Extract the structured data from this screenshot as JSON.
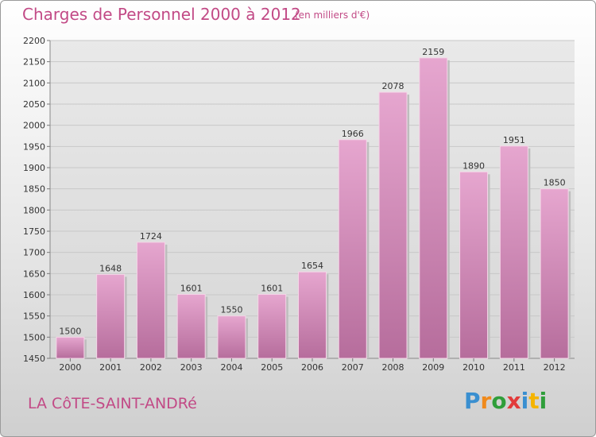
{
  "header": {
    "title": "Charges de Personnel 2000 à 2012",
    "subtitle": "(en milliers d'€)"
  },
  "footer": {
    "town": "LA CôTE-SAINT-ANDRé",
    "logo_letters": [
      "P",
      "r",
      "o",
      "x",
      "i",
      "t",
      "i"
    ],
    "logo_colors": [
      "#3a8fd0",
      "#f08a1c",
      "#2f9e3a",
      "#e23b3b",
      "#3a8fd0",
      "#f5b400",
      "#2f9e3a"
    ]
  },
  "chart_data": {
    "type": "bar",
    "categories": [
      "2000",
      "2001",
      "2002",
      "2003",
      "2004",
      "2005",
      "2006",
      "2007",
      "2008",
      "2009",
      "2010",
      "2011",
      "2012"
    ],
    "values": [
      1500,
      1648,
      1724,
      1601,
      1550,
      1601,
      1654,
      1966,
      2078,
      2159,
      1890,
      1951,
      1850
    ],
    "title": "Charges de Personnel 2000 à 2012",
    "subtitle": "(en milliers d'€)",
    "xlabel": "",
    "ylabel": "",
    "ylim": [
      1450,
      2200
    ],
    "yticks": [
      1450,
      1500,
      1550,
      1600,
      1650,
      1700,
      1750,
      1800,
      1850,
      1900,
      1950,
      2000,
      2050,
      2100,
      2150,
      2200
    ],
    "grid": true,
    "bar_color": "#d98bb8",
    "grid_color": "#c8c8c8"
  }
}
